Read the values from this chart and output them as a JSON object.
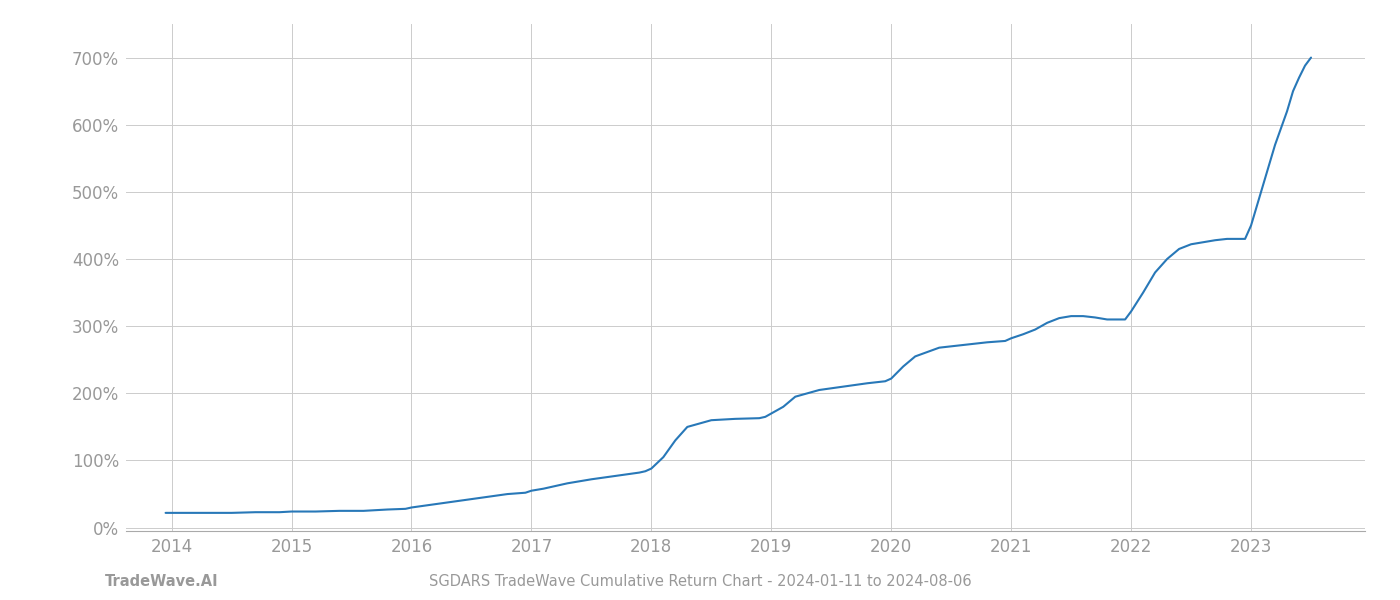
{
  "title": "SGDARS TradeWave Cumulative Return Chart - 2024-01-11 to 2024-08-06",
  "watermark": "TradeWave.AI",
  "line_color": "#2878b8",
  "line_width": 1.5,
  "background_color": "#ffffff",
  "grid_color": "#cccccc",
  "tick_color": "#999999",
  "xlim_start": 2013.62,
  "xlim_end": 2023.95,
  "ylim_min": -0.05,
  "ylim_max": 7.5,
  "x_years": [
    2014,
    2015,
    2016,
    2017,
    2018,
    2019,
    2020,
    2021,
    2022,
    2023
  ],
  "y_ticks": [
    0,
    1,
    2,
    3,
    4,
    5,
    6,
    7
  ],
  "y_tick_labels": [
    "0%",
    "100%",
    "200%",
    "300%",
    "400%",
    "500%",
    "600%",
    "700%"
  ],
  "data_x": [
    2013.95,
    2014.0,
    2014.1,
    2014.2,
    2014.3,
    2014.5,
    2014.7,
    2014.9,
    2015.0,
    2015.2,
    2015.4,
    2015.6,
    2015.8,
    2015.95,
    2016.0,
    2016.2,
    2016.4,
    2016.6,
    2016.8,
    2016.95,
    2017.0,
    2017.1,
    2017.2,
    2017.3,
    2017.5,
    2017.7,
    2017.9,
    2017.95,
    2018.0,
    2018.1,
    2018.2,
    2018.3,
    2018.5,
    2018.7,
    2018.9,
    2018.95,
    2019.0,
    2019.1,
    2019.2,
    2019.4,
    2019.6,
    2019.8,
    2019.95,
    2020.0,
    2020.1,
    2020.2,
    2020.4,
    2020.6,
    2020.8,
    2020.95,
    2021.0,
    2021.1,
    2021.2,
    2021.3,
    2021.4,
    2021.5,
    2021.6,
    2021.7,
    2021.8,
    2021.95,
    2022.0,
    2022.1,
    2022.2,
    2022.3,
    2022.4,
    2022.5,
    2022.6,
    2022.7,
    2022.8,
    2022.9,
    2022.95,
    2023.0,
    2023.1,
    2023.2,
    2023.3,
    2023.35,
    2023.4,
    2023.45,
    2023.5
  ],
  "data_y": [
    0.22,
    0.22,
    0.22,
    0.22,
    0.22,
    0.22,
    0.23,
    0.23,
    0.24,
    0.24,
    0.25,
    0.25,
    0.27,
    0.28,
    0.3,
    0.35,
    0.4,
    0.45,
    0.5,
    0.52,
    0.55,
    0.58,
    0.62,
    0.66,
    0.72,
    0.77,
    0.82,
    0.84,
    0.88,
    1.05,
    1.3,
    1.5,
    1.6,
    1.62,
    1.63,
    1.65,
    1.7,
    1.8,
    1.95,
    2.05,
    2.1,
    2.15,
    2.18,
    2.22,
    2.4,
    2.55,
    2.68,
    2.72,
    2.76,
    2.78,
    2.82,
    2.88,
    2.95,
    3.05,
    3.12,
    3.15,
    3.15,
    3.13,
    3.1,
    3.1,
    3.22,
    3.5,
    3.8,
    4.0,
    4.15,
    4.22,
    4.25,
    4.28,
    4.3,
    4.3,
    4.3,
    4.5,
    5.1,
    5.7,
    6.2,
    6.5,
    6.7,
    6.88,
    7.0
  ]
}
